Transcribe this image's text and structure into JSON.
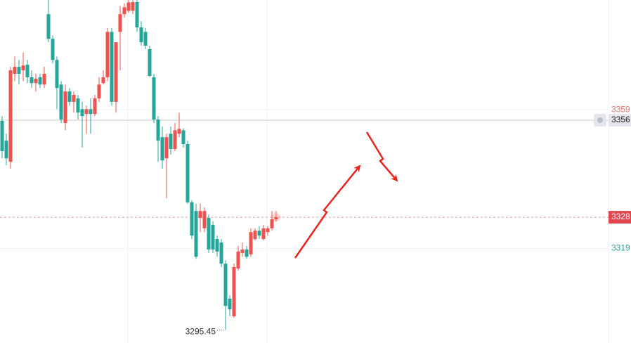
{
  "chart_data": {
    "type": "candlestick",
    "ylim": [
      3291.7,
      3390.7
    ],
    "up_color": "#ef5350",
    "down_color": "#26a69a",
    "open": [
      3355.8,
      3350.1,
      3344.0,
      3369.4,
      3371.4,
      3370.4,
      3372.0,
      3368.4,
      3366.7,
      3368.4,
      3366.3,
      3386.6,
      3379.5,
      3373.4,
      3366.3,
      3355.2,
      3364.3,
      3361.3,
      3362.3,
      3359.2,
      3357.8,
      3359.2,
      3357.8,
      3362.3,
      3366.7,
      3368.4,
      3381.5,
      3361.3,
      3381.5,
      3386.6,
      3387.6,
      3387.6,
      3390.1,
      3382.8,
      3381.5,
      3376.5,
      3368.4,
      3356.2,
      3351.1,
      3345.0,
      3352.1,
      3347.7,
      3352.1,
      3353.1,
      3349.1,
      3332.3,
      3329.8,
      3327.8,
      3324.8,
      3327.8,
      3325.8,
      3321.7,
      3320.7,
      3314.6,
      3304.5,
      3299.4,
      3313.2,
      3317.7,
      3318.7,
      3317.3,
      3321.7,
      3324.1,
      3321.7,
      3323.7,
      3324.8,
      3327.4
    ],
    "high": [
      3357.2,
      3352.1,
      3371.4,
      3374.4,
      3373.4,
      3375.5,
      3373.4,
      3370.4,
      3369.4,
      3369.4,
      3371.4,
      3390.7,
      3380.5,
      3374.4,
      3367.3,
      3366.3,
      3365.3,
      3364.3,
      3363.3,
      3361.3,
      3360.2,
      3362.3,
      3363.3,
      3368.4,
      3370.4,
      3382.6,
      3382.6,
      3378.5,
      3389.0,
      3389.7,
      3390.7,
      3390.7,
      3390.7,
      3384.6,
      3382.6,
      3377.5,
      3369.4,
      3357.2,
      3354.2,
      3352.1,
      3354.2,
      3355.2,
      3358.2,
      3353.7,
      3350.1,
      3332.9,
      3331.9,
      3331.9,
      3330.8,
      3328.8,
      3326.8,
      3322.7,
      3321.7,
      3315.6,
      3305.5,
      3314.6,
      3319.7,
      3320.7,
      3319.7,
      3324.8,
      3324.8,
      3325.4,
      3325.8,
      3325.4,
      3329.8,
      3329.8
    ],
    "low": [
      3345.0,
      3343.0,
      3342.0,
      3367.3,
      3366.3,
      3367.3,
      3366.7,
      3365.3,
      3364.3,
      3365.3,
      3365.3,
      3378.5,
      3372.4,
      3359.2,
      3355.2,
      3353.1,
      3360.2,
      3358.2,
      3356.2,
      3348.1,
      3352.1,
      3352.1,
      3357.2,
      3361.3,
      3366.3,
      3367.3,
      3360.2,
      3358.2,
      3370.4,
      3385.6,
      3387.0,
      3386.6,
      3381.5,
      3377.5,
      3376.5,
      3368.4,
      3355.2,
      3344.0,
      3342.0,
      3333.5,
      3346.0,
      3347.1,
      3351.1,
      3348.1,
      3331.9,
      3321.7,
      3316.0,
      3323.7,
      3323.7,
      3317.7,
      3317.7,
      3316.6,
      3313.6,
      3295.45,
      3299.4,
      3299.0,
      3312.6,
      3316.6,
      3316.0,
      3316.6,
      3321.3,
      3321.7,
      3321.3,
      3322.7,
      3324.1,
      3326.8
    ],
    "close": [
      3347.1,
      3345.0,
      3370.4,
      3371.4,
      3369.4,
      3371.8,
      3368.4,
      3366.7,
      3368.0,
      3366.3,
      3369.4,
      3379.5,
      3373.4,
      3365.3,
      3356.2,
      3364.3,
      3361.3,
      3363.3,
      3358.2,
      3357.2,
      3359.2,
      3357.8,
      3362.3,
      3366.3,
      3368.4,
      3381.5,
      3361.3,
      3378.5,
      3386.6,
      3388.6,
      3390.0,
      3390.1,
      3382.8,
      3378.5,
      3377.5,
      3368.8,
      3356.2,
      3350.1,
      3344.4,
      3351.1,
      3347.7,
      3353.1,
      3353.5,
      3349.1,
      3332.3,
      3322.7,
      3316.6,
      3329.8,
      3329.8,
      3318.7,
      3318.7,
      3318.1,
      3314.6,
      3302.4,
      3301.4,
      3313.6,
      3318.1,
      3318.7,
      3316.6,
      3323.7,
      3324.1,
      3322.7,
      3324.8,
      3324.8,
      3327.4,
      3328
    ],
    "levels": [
      3359,
      3319
    ],
    "level_colors": [
      "#e57373",
      "#26a69a"
    ],
    "crosshair_price": 3356,
    "last_price": 3328,
    "low_label": 3295.45
  }
}
